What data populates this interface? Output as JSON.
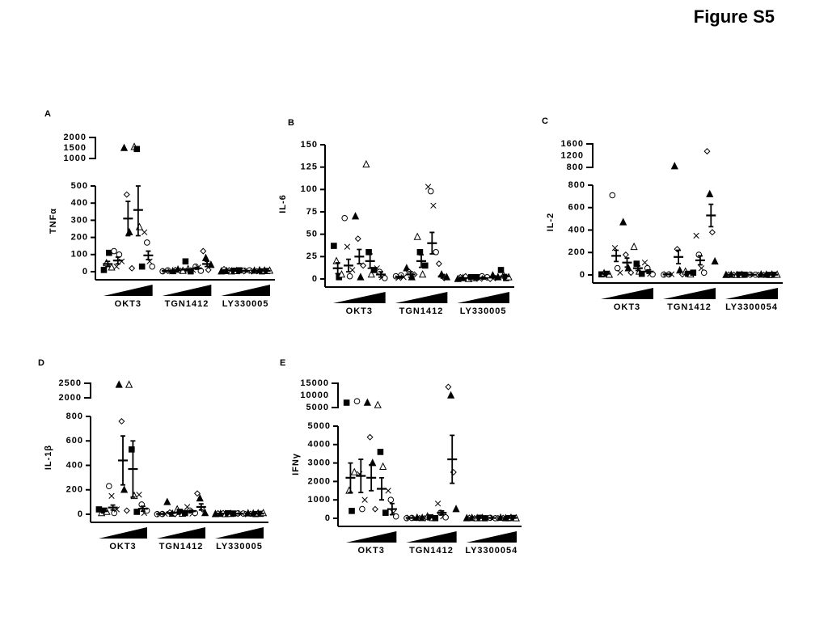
{
  "chart_data": {
    "type": "scatter",
    "title": "Figure S5",
    "panels": [
      {
        "letter": "A",
        "ylabel": "TNFα",
        "ylim": [
          0,
          500
        ],
        "yticks": [
          0,
          100,
          200,
          300,
          400,
          500
        ],
        "ylim_upper": [
          1000,
          2000
        ],
        "yticks_upper": [
          1000,
          1500,
          2000
        ],
        "series": [
          {
            "name": "OKT3",
            "groups": [
              {
                "mean": 45,
                "err": 15,
                "points": [
                  10,
                  50,
                  110,
                  25
                ]
              },
              {
                "mean": 65,
                "err": 20,
                "points": [
                  120,
                  30,
                  100,
                  60
                ]
              },
              {
                "mean": 310,
                "err": 100,
                "points": [
                  1500,
                  450,
                  230,
                  20
                ]
              },
              {
                "mean": 360,
                "err": 150,
                "points": [
                  1550,
                  1450,
                  260,
                  30
                ]
              },
              {
                "mean": 95,
                "err": 25,
                "points": [
                  230,
                  170,
                  60,
                  30
                ]
              }
            ]
          },
          {
            "name": "TGN1412",
            "groups": [
              {
                "mean": 5,
                "err": 2,
                "points": [
                  2,
                  5,
                  8,
                  3
                ]
              },
              {
                "mean": 8,
                "err": 3,
                "points": [
                  3,
                  10,
                  12,
                  5
                ]
              },
              {
                "mean": 12,
                "err": 4,
                "points": [
                  5,
                  60,
                  15,
                  2
                ]
              },
              {
                "mean": 20,
                "err": 5,
                "points": [
                  10,
                  30,
                  25,
                  5
                ]
              },
              {
                "mean": 45,
                "err": 15,
                "points": [
                  120,
                  80,
                  10,
                  40
                ]
              }
            ]
          },
          {
            "name": "LY330005",
            "groups": [
              {
                "mean": 8,
                "err": 3,
                "points": [
                  2,
                  15,
                  4,
                  8
                ]
              },
              {
                "mean": 5,
                "err": 2,
                "points": [
                  2,
                  6,
                  4,
                  8
                ]
              },
              {
                "mean": 5,
                "err": 2,
                "points": [
                  1,
                  6,
                  4,
                  8
                ]
              },
              {
                "mean": 5,
                "err": 2,
                "points": [
                  2,
                  6,
                  3,
                  8
                ]
              },
              {
                "mean": 5,
                "err": 2,
                "points": [
                  2,
                  7,
                  4,
                  6
                ]
              }
            ]
          }
        ]
      },
      {
        "letter": "B",
        "ylabel": "IL-6",
        "ylim": [
          0,
          150
        ],
        "yticks": [
          0,
          25,
          50,
          75,
          100,
          125,
          150
        ],
        "series": [
          {
            "name": "OKT3",
            "groups": [
              {
                "mean": 12,
                "err": 6,
                "points": [
                  37,
                  20,
                  2,
                  5
                ]
              },
              {
                "mean": 15,
                "err": 7,
                "points": [
                  68,
                  36,
                  3,
                  10
                ]
              },
              {
                "mean": 25,
                "err": 8,
                "points": [
                  70,
                  45,
                  2,
                  15
                ]
              },
              {
                "mean": 20,
                "err": 8,
                "points": [
                  128,
                  30,
                  5,
                  10
                ]
              },
              {
                "mean": 5,
                "err": 3,
                "points": [
                  12,
                  8,
                  2,
                  1
                ]
              }
            ]
          },
          {
            "name": "TGN1412",
            "groups": [
              {
                "mean": 2,
                "err": 1,
                "points": [
                  3,
                  1,
                  4,
                  2
                ]
              },
              {
                "mean": 5,
                "err": 3,
                "points": [
                  12,
                  8,
                  2,
                  5
                ]
              },
              {
                "mean": 20,
                "err": 7,
                "points": [
                  47,
                  30,
                  5,
                  15
                ]
              },
              {
                "mean": 40,
                "err": 12,
                "points": [
                  103,
                  98,
                  82,
                  30
                ]
              },
              {
                "mean": 3,
                "err": 2,
                "points": [
                  17,
                  5,
                  1,
                  2
                ]
              }
            ]
          },
          {
            "name": "LY330005",
            "groups": [
              {
                "mean": 1,
                "err": 1,
                "points": [
                  0,
                  2,
                  1,
                  3
                ]
              },
              {
                "mean": 1,
                "err": 1,
                "points": [
                  0,
                  2,
                  1,
                  2
                ]
              },
              {
                "mean": 1,
                "err": 1,
                "points": [
                  0,
                  3,
                  1,
                  2
                ]
              },
              {
                "mean": 2,
                "err": 1,
                "points": [
                  0,
                  4,
                  1,
                  2
                ]
              },
              {
                "mean": 3,
                "err": 2,
                "points": [
                  10,
                  4,
                  1,
                  2
                ]
              }
            ]
          }
        ]
      },
      {
        "letter": "C",
        "ylabel": "IL-2",
        "ylim": [
          0,
          800
        ],
        "yticks": [
          0,
          200,
          400,
          600,
          800
        ],
        "ylim_upper": [
          800,
          1600
        ],
        "yticks_upper": [
          800,
          1200,
          1600
        ],
        "series": [
          {
            "name": "OKT3",
            "groups": [
              {
                "mean": 10,
                "err": 3,
                "points": [
                  5,
                  15,
                  10,
                  2
                ]
              },
              {
                "mean": 170,
                "err": 50,
                "points": [
                  710,
                  240,
                  60,
                  20
                ]
              },
              {
                "mean": 110,
                "err": 40,
                "points": [
                  470,
                  180,
                  60,
                  20
                ]
              },
              {
                "mean": 60,
                "err": 20,
                "points": [
                  250,
                  100,
                  30,
                  10
                ]
              },
              {
                "mean": 30,
                "err": 15,
                "points": [
                  110,
                  60,
                  10,
                  5
                ]
              }
            ]
          },
          {
            "name": "TGN1412",
            "groups": [
              {
                "mean": 5,
                "err": 2,
                "points": [
                  2,
                  8,
                  4,
                  6
                ]
              },
              {
                "mean": 160,
                "err": 60,
                "points": [
                  840,
                  230,
                  40,
                  5
                ]
              },
              {
                "mean": 20,
                "err": 8,
                "points": [
                  30,
                  10,
                  5,
                  20
                ]
              },
              {
                "mean": 130,
                "err": 40,
                "points": [
                  350,
                  180,
                  60,
                  20
                ]
              },
              {
                "mean": 530,
                "err": 100,
                "points": [
                  1350,
                  720,
                  380,
                  120
                ]
              }
            ]
          },
          {
            "name": "LY3300054",
            "groups": [
              {
                "mean": 2,
                "err": 1,
                "points": [
                  0,
                  3,
                  1,
                  2
                ]
              },
              {
                "mean": 2,
                "err": 1,
                "points": [
                  0,
                  3,
                  1,
                  2
                ]
              },
              {
                "mean": 2,
                "err": 1,
                "points": [
                  0,
                  3,
                  1,
                  2
                ]
              },
              {
                "mean": 2,
                "err": 1,
                "points": [
                  0,
                  3,
                  1,
                  2
                ]
              },
              {
                "mean": 2,
                "err": 1,
                "points": [
                  0,
                  3,
                  1,
                  2
                ]
              }
            ]
          }
        ]
      },
      {
        "letter": "D",
        "ylabel": "IL-1β",
        "ylim": [
          0,
          800
        ],
        "yticks": [
          0,
          200,
          400,
          600,
          800
        ],
        "ylim_upper": [
          2000,
          2500
        ],
        "yticks_upper": [
          2000,
          2500
        ],
        "series": [
          {
            "name": "OKT3",
            "groups": [
              {
                "mean": 25,
                "err": 5,
                "points": [
                  40,
                  10,
                  30,
                  20
                ]
              },
              {
                "mean": 55,
                "err": 20,
                "points": [
                  230,
                  150,
                  10,
                  40
                ]
              },
              {
                "mean": 440,
                "err": 200,
                "points": [
                  2450,
                  760,
                  200,
                  30
                ]
              },
              {
                "mean": 370,
                "err": 230,
                "points": [
                  2450,
                  530,
                  150,
                  20
                ]
              },
              {
                "mean": 45,
                "err": 20,
                "points": [
                  160,
                  80,
                  10,
                  30
                ]
              }
            ]
          },
          {
            "name": "TGN1412",
            "groups": [
              {
                "mean": 3,
                "err": 2,
                "points": [
                  1,
                  5,
                  2,
                  4
                ]
              },
              {
                "mean": 10,
                "err": 3,
                "points": [
                  100,
                  15,
                  5,
                  2
                ]
              },
              {
                "mean": 15,
                "err": 5,
                "points": [
                  40,
                  20,
                  5,
                  10
                ]
              },
              {
                "mean": 25,
                "err": 8,
                "points": [
                  60,
                  30,
                  5,
                  10
                ]
              },
              {
                "mean": 60,
                "err": 25,
                "points": [
                  170,
                  130,
                  40,
                  10
                ]
              }
            ]
          },
          {
            "name": "LY330005",
            "groups": [
              {
                "mean": 5,
                "err": 2,
                "points": [
                  2,
                  8,
                  4,
                  10
                ]
              },
              {
                "mean": 5,
                "err": 2,
                "points": [
                  2,
                  8,
                  4,
                  6
                ]
              },
              {
                "mean": 5,
                "err": 2,
                "points": [
                  2,
                  8,
                  4,
                  6
                ]
              },
              {
                "mean": 5,
                "err": 2,
                "points": [
                  2,
                  8,
                  4,
                  6
                ]
              },
              {
                "mean": 5,
                "err": 2,
                "points": [
                  2,
                  8,
                  4,
                  10
                ]
              }
            ]
          }
        ]
      },
      {
        "letter": "E",
        "ylabel": "IFNγ",
        "ylim": [
          0,
          5000
        ],
        "yticks": [
          0,
          1000,
          2000,
          3000,
          4000,
          5000
        ],
        "ylim_upper": [
          5000,
          15000
        ],
        "yticks_upper": [
          5000,
          10000,
          15000
        ],
        "series": [
          {
            "name": "OKT3",
            "groups": [
              {
                "mean": 2200,
                "err": 800,
                "points": [
                  7000,
                  1500,
                  400,
                  2500
                ]
              },
              {
                "mean": 2300,
                "err": 900,
                "points": [
                  7600,
                  2400,
                  500,
                  1000
                ]
              },
              {
                "mean": 2200,
                "err": 700,
                "points": [
                  7000,
                  4400,
                  3000,
                  500
                ]
              },
              {
                "mean": 1600,
                "err": 600,
                "points": [
                  6000,
                  3600,
                  2800,
                  300
                ]
              },
              {
                "mean": 500,
                "err": 300,
                "points": [
                  1500,
                  1000,
                  300,
                  100
                ]
              }
            ]
          },
          {
            "name": "TGN1412",
            "groups": [
              {
                "mean": 20,
                "err": 10,
                "points": [
                  10,
                  40,
                  20,
                  5
                ]
              },
              {
                "mean": 20,
                "err": 10,
                "points": [
                  30,
                  10,
                  20,
                  5
                ]
              },
              {
                "mean": 50,
                "err": 20,
                "points": [
                  100,
                  50,
                  20,
                  10
                ]
              },
              {
                "mean": 300,
                "err": 100,
                "points": [
                  800,
                  300,
                  100,
                  50
                ]
              },
              {
                "mean": 3200,
                "err": 1300,
                "points": [
                  13500,
                  10000,
                  2500,
                  500
                ]
              }
            ]
          },
          {
            "name": "LY3300054",
            "groups": [
              {
                "mean": 20,
                "err": 10,
                "points": [
                  10,
                  30,
                  20,
                  5
                ]
              },
              {
                "mean": 20,
                "err": 10,
                "points": [
                  10,
                  30,
                  20,
                  5
                ]
              },
              {
                "mean": 20,
                "err": 10,
                "points": [
                  10,
                  30,
                  20,
                  5
                ]
              },
              {
                "mean": 20,
                "err": 10,
                "points": [
                  10,
                  30,
                  20,
                  5
                ]
              },
              {
                "mean": 20,
                "err": 10,
                "points": [
                  10,
                  30,
                  20,
                  5
                ]
              }
            ]
          }
        ]
      }
    ]
  }
}
